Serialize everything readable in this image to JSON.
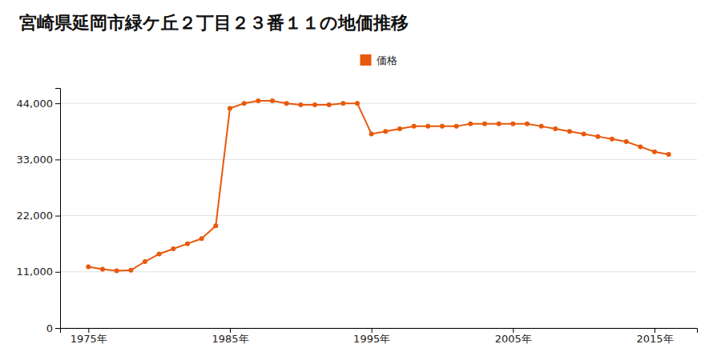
{
  "chart_data": {
    "type": "line",
    "title": "宮崎県延岡市緑ケ丘２丁目２３番１１の地価推移",
    "x": [
      1975,
      1976,
      1977,
      1978,
      1979,
      1980,
      1981,
      1982,
      1983,
      1984,
      1985,
      1986,
      1987,
      1988,
      1989,
      1990,
      1991,
      1992,
      1993,
      1994,
      1995,
      1996,
      1997,
      1998,
      1999,
      2000,
      2001,
      2002,
      2003,
      2004,
      2005,
      2006,
      2007,
      2008,
      2009,
      2010,
      2011,
      2012,
      2013,
      2014,
      2015,
      2016
    ],
    "series": [
      {
        "name": "価格",
        "color": "#e8590c",
        "marker": "circle",
        "values": [
          12000,
          11500,
          11200,
          11300,
          13000,
          14500,
          15500,
          16500,
          17500,
          20000,
          43000,
          44000,
          44500,
          44500,
          44000,
          43700,
          43700,
          43700,
          44000,
          44000,
          38000,
          38500,
          39000,
          39500,
          39500,
          39500,
          39500,
          40000,
          40000,
          40000,
          40000,
          40000,
          39500,
          39000,
          38500,
          38000,
          37500,
          37000,
          36500,
          35500,
          34500,
          34000
        ]
      }
    ],
    "xlim": [
      1973,
      2018
    ],
    "xticks": [
      {
        "value": 1975,
        "label": "1975年"
      },
      {
        "value": 1985,
        "label": "1985年"
      },
      {
        "value": 1995,
        "label": "1995年"
      },
      {
        "value": 2005,
        "label": "2005年"
      },
      {
        "value": 2015,
        "label": "2015年"
      }
    ],
    "ylim": [
      0,
      47000
    ],
    "yticks": [
      0,
      {
        "value": 11000,
        "label": "11,000"
      },
      {
        "value": 22000,
        "label": "22,000"
      },
      {
        "value": 33000,
        "label": "33,000"
      },
      {
        "value": 44000,
        "label": "44,000"
      }
    ],
    "grid": true,
    "legend": "top"
  }
}
